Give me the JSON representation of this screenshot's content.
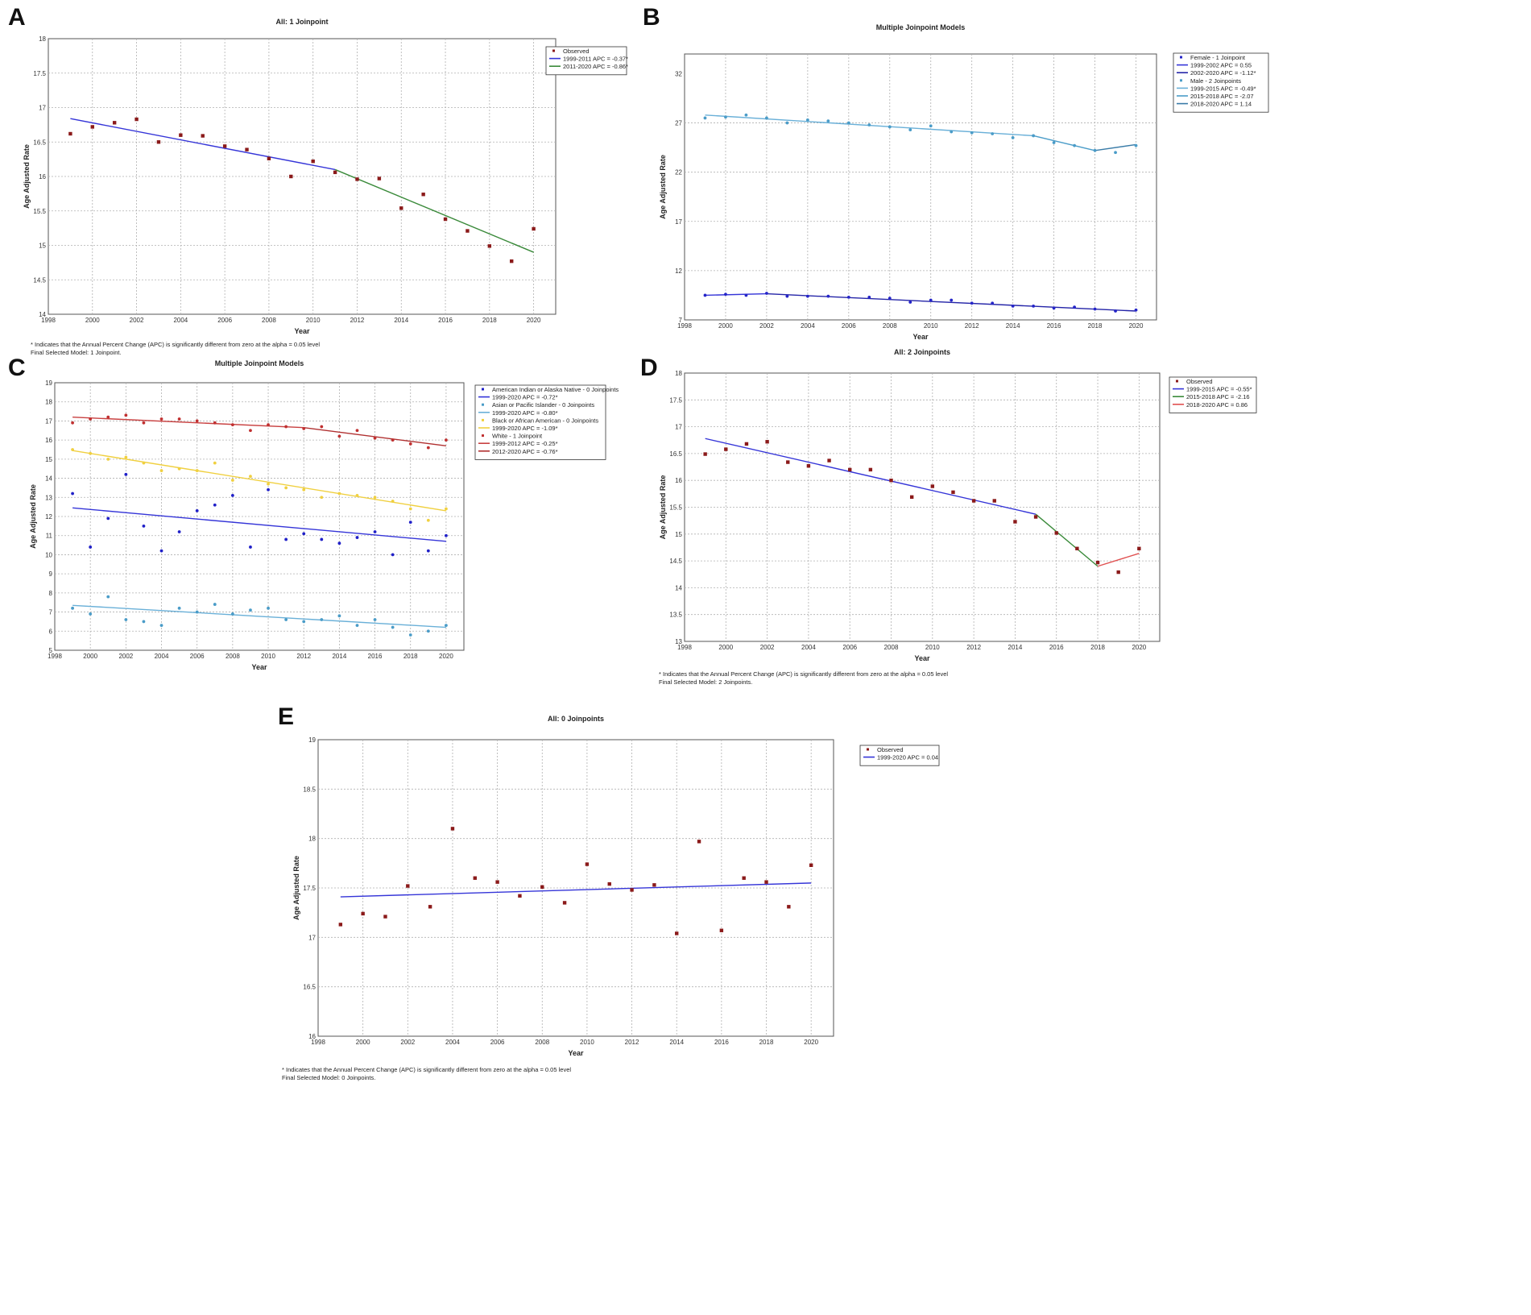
{
  "panels": {
    "A": {
      "label": "A",
      "footnote1": "* Indicates that the Annual Percent Change (APC) is significantly different from zero at the alpha = 0.05 level",
      "footnote2": "Final Selected Model: 1 Joinpoint."
    },
    "B": {
      "label": "B"
    },
    "C": {
      "label": "C"
    },
    "D": {
      "label": "D",
      "footnote1": "* Indicates that the Annual Percent Change (APC) is significantly different from zero at the alpha = 0.05 level",
      "footnote2": "Final Selected Model: 2 Joinpoints."
    },
    "E": {
      "label": "E",
      "footnote1": "* Indicates that the Annual Percent Change (APC) is significantly different from zero at the alpha = 0.05 level",
      "footnote2": "Final Selected Model: 0 Joinpoints."
    }
  },
  "colors": {
    "observed": "#8b1a1a",
    "blue": "#3535d8",
    "green": "#3a8a3a",
    "lightblue": "#4a9cc8",
    "red": "#d04848",
    "yellow": "#f0d040",
    "white_red": "#c84040"
  },
  "chart_data": [
    {
      "id": "A",
      "type": "scatter",
      "title": "All: 1 Joinpoint",
      "xlabel": "Year",
      "ylabel": "Age Adjusted Rate",
      "xlim": [
        1998,
        2021
      ],
      "ylim": [
        14,
        18
      ],
      "xticks": [
        1998,
        2000,
        2002,
        2004,
        2006,
        2008,
        2010,
        2012,
        2014,
        2016,
        2018,
        2020
      ],
      "yticks": [
        "14",
        "14.5",
        "15",
        "15.5",
        "16",
        "16.5",
        "17",
        "17.5",
        "18"
      ],
      "legend": [
        {
          "label": "Observed",
          "kind": "point",
          "color": "#8b1a1a"
        },
        {
          "label": "1999-2011 APC = -0.37*",
          "kind": "line",
          "color": "#3535d8"
        },
        {
          "label": "2011-2020 APC = -0.86*",
          "kind": "line",
          "color": "#3a8a3a"
        }
      ],
      "points": [
        {
          "series": "Observed",
          "color": "#8b1a1a",
          "x": [
            1999,
            2000,
            2001,
            2002,
            2003,
            2004,
            2005,
            2006,
            2007,
            2008,
            2009,
            2010,
            2011,
            2012,
            2013,
            2014,
            2015,
            2016,
            2017,
            2018,
            2019,
            2020
          ],
          "y": [
            16.62,
            16.72,
            16.78,
            16.83,
            16.5,
            16.6,
            16.59,
            16.44,
            16.39,
            16.26,
            16.0,
            16.22,
            16.06,
            15.96,
            15.97,
            15.54,
            15.74,
            15.38,
            15.21,
            14.99,
            14.77,
            15.24
          ]
        }
      ],
      "lines": [
        {
          "label": "1999-2011 APC = -0.37*",
          "color": "#3535d8",
          "x": [
            1999,
            2011
          ],
          "y": [
            16.84,
            16.1
          ]
        },
        {
          "label": "2011-2020 APC = -0.86*",
          "color": "#3a8a3a",
          "x": [
            2011,
            2020
          ],
          "y": [
            16.1,
            14.9
          ]
        }
      ]
    },
    {
      "id": "B",
      "type": "line",
      "title": "Multiple Joinpoint Models",
      "xlabel": "Year",
      "ylabel": "Age Adjusted Rate",
      "xlim": [
        1998,
        2021
      ],
      "ylim": [
        7,
        34
      ],
      "xticks": [
        1998,
        2000,
        2002,
        2004,
        2006,
        2008,
        2010,
        2012,
        2014,
        2016,
        2018,
        2020
      ],
      "yticks": [
        "7",
        "12",
        "17",
        "22",
        "27",
        "32"
      ],
      "legend": [
        {
          "label": "Female - 1 Joinpoint",
          "kind": "point",
          "color": "#2525c8"
        },
        {
          "label": "1999-2002 APC = 0.55",
          "kind": "line",
          "color": "#3535d8"
        },
        {
          "label": "2002-2020 APC = -1.12*",
          "kind": "line",
          "color": "#2525a8"
        },
        {
          "label": "Male - 2 Joinpoints",
          "kind": "point",
          "color": "#4a9cc8"
        },
        {
          "label": "1999-2015 APC = -0.49*",
          "kind": "line",
          "color": "#6ab0d8"
        },
        {
          "label": "2015-2018 APC = -2.07",
          "kind": "line",
          "color": "#4a9cc8"
        },
        {
          "label": "2018-2020 APC = 1.14",
          "kind": "line",
          "color": "#3a7ca8"
        }
      ],
      "points": [
        {
          "series": "Female",
          "color": "#2525c8",
          "x": [
            1999,
            2000,
            2001,
            2002,
            2003,
            2004,
            2005,
            2006,
            2007,
            2008,
            2009,
            2010,
            2011,
            2012,
            2013,
            2014,
            2015,
            2016,
            2017,
            2018,
            2019,
            2020
          ],
          "y": [
            9.5,
            9.6,
            9.5,
            9.7,
            9.4,
            9.4,
            9.4,
            9.3,
            9.3,
            9.2,
            8.8,
            9.0,
            9.0,
            8.7,
            8.7,
            8.4,
            8.4,
            8.2,
            8.3,
            8.1,
            7.9,
            8.0
          ]
        },
        {
          "series": "Male",
          "color": "#4a9cc8",
          "x": [
            1999,
            2000,
            2001,
            2002,
            2003,
            2004,
            2005,
            2006,
            2007,
            2008,
            2009,
            2010,
            2011,
            2012,
            2013,
            2014,
            2015,
            2016,
            2017,
            2018,
            2019,
            2020
          ],
          "y": [
            27.5,
            27.6,
            27.8,
            27.5,
            27.0,
            27.3,
            27.2,
            27.0,
            26.8,
            26.6,
            26.3,
            26.7,
            26.1,
            26.0,
            25.9,
            25.5,
            25.7,
            25.0,
            24.7,
            24.2,
            24.0,
            24.7
          ]
        }
      ],
      "lines": [
        {
          "label": "1999-2002 APC = 0.55",
          "color": "#3535d8",
          "x": [
            1999,
            2002
          ],
          "y": [
            9.5,
            9.65
          ]
        },
        {
          "label": "2002-2020 APC = -1.12*",
          "color": "#2525a8",
          "x": [
            2002,
            2020
          ],
          "y": [
            9.65,
            7.9
          ]
        },
        {
          "label": "1999-2015 APC = -0.49*",
          "color": "#6ab0d8",
          "x": [
            1999,
            2015
          ],
          "y": [
            27.8,
            25.7
          ]
        },
        {
          "label": "2015-2018 APC = -2.07",
          "color": "#4a9cc8",
          "x": [
            2015,
            2018
          ],
          "y": [
            25.7,
            24.2
          ]
        },
        {
          "label": "2018-2020 APC = 1.14",
          "color": "#3a7ca8",
          "x": [
            2018,
            2020
          ],
          "y": [
            24.2,
            24.8
          ]
        }
      ]
    },
    {
      "id": "C",
      "type": "line",
      "title": "Multiple Joinpoint Models",
      "xlabel": "Year",
      "ylabel": "Age Adjusted Rate",
      "xlim": [
        1998,
        2021
      ],
      "ylim": [
        5,
        19
      ],
      "xticks": [
        1998,
        2000,
        2002,
        2004,
        2006,
        2008,
        2010,
        2012,
        2014,
        2016,
        2018,
        2020
      ],
      "yticks": [
        "5",
        "6",
        "7",
        "8",
        "9",
        "10",
        "11",
        "12",
        "13",
        "14",
        "15",
        "16",
        "17",
        "18",
        "19"
      ],
      "legend": [
        {
          "label": "American Indian or Alaska Native - 0 Joinpoints",
          "kind": "point",
          "color": "#2020c8"
        },
        {
          "label": "1999-2020 APC = -0.72*",
          "kind": "line",
          "color": "#3535d8"
        },
        {
          "label": "Asian or Pacific Islander - 0 Joinpoints",
          "kind": "point",
          "color": "#4a9cc8"
        },
        {
          "label": "1999-2020 APC = -0.80*",
          "kind": "line",
          "color": "#6ab0d8"
        },
        {
          "label": "Black or African American - 0 Joinpoints",
          "kind": "point",
          "color": "#f0d040"
        },
        {
          "label": "1999-2020 APC = -1.09*",
          "kind": "line",
          "color": "#f0d040"
        },
        {
          "label": "White - 1 Joinpoint",
          "kind": "point",
          "color": "#c03030"
        },
        {
          "label": "1999-2012 APC = -0.25*",
          "kind": "line",
          "color": "#c84040"
        },
        {
          "label": "2012-2020 APC = -0.76*",
          "kind": "line",
          "color": "#b03030"
        }
      ],
      "points": [
        {
          "series": "AIAN",
          "color": "#2020c8",
          "x": [
            1999,
            2000,
            2001,
            2002,
            2003,
            2004,
            2005,
            2006,
            2007,
            2008,
            2009,
            2010,
            2011,
            2012,
            2013,
            2014,
            2015,
            2016,
            2017,
            2018,
            2019,
            2020
          ],
          "y": [
            13.2,
            10.4,
            11.9,
            14.2,
            11.5,
            10.2,
            11.2,
            12.3,
            12.6,
            13.1,
            10.4,
            13.4,
            10.8,
            11.1,
            10.8,
            10.6,
            10.9,
            11.2,
            10.0,
            11.7,
            10.2,
            11.0
          ]
        },
        {
          "series": "API",
          "color": "#4a9cc8",
          "x": [
            1999,
            2000,
            2001,
            2002,
            2003,
            2004,
            2005,
            2006,
            2007,
            2008,
            2009,
            2010,
            2011,
            2012,
            2013,
            2014,
            2015,
            2016,
            2017,
            2018,
            2019,
            2020
          ],
          "y": [
            7.2,
            6.9,
            7.8,
            6.6,
            6.5,
            6.3,
            7.2,
            7.0,
            7.4,
            6.9,
            7.1,
            7.2,
            6.6,
            6.5,
            6.6,
            6.8,
            6.3,
            6.6,
            6.2,
            5.8,
            6.0,
            6.3
          ]
        },
        {
          "series": "Black",
          "color": "#f0d040",
          "x": [
            1999,
            2000,
            2001,
            2002,
            2003,
            2004,
            2005,
            2006,
            2007,
            2008,
            2009,
            2010,
            2011,
            2012,
            2013,
            2014,
            2015,
            2016,
            2017,
            2018,
            2019,
            2020
          ],
          "y": [
            15.5,
            15.3,
            15.0,
            15.1,
            14.8,
            14.4,
            14.5,
            14.4,
            14.8,
            13.9,
            14.1,
            13.7,
            13.5,
            13.4,
            13.0,
            13.2,
            13.1,
            13.0,
            12.8,
            12.4,
            11.8,
            12.4
          ]
        },
        {
          "series": "White",
          "color": "#c03030",
          "x": [
            1999,
            2000,
            2001,
            2002,
            2003,
            2004,
            2005,
            2006,
            2007,
            2008,
            2009,
            2010,
            2011,
            2012,
            2013,
            2014,
            2015,
            2016,
            2017,
            2018,
            2019,
            2020
          ],
          "y": [
            16.9,
            17.1,
            17.2,
            17.3,
            16.9,
            17.1,
            17.1,
            17.0,
            16.9,
            16.8,
            16.5,
            16.8,
            16.7,
            16.6,
            16.7,
            16.2,
            16.5,
            16.1,
            16.0,
            15.8,
            15.6,
            16.0
          ]
        }
      ],
      "lines": [
        {
          "label": "1999-2020 APC = -0.72*",
          "color": "#3535d8",
          "x": [
            1999,
            2020
          ],
          "y": [
            12.45,
            10.7
          ]
        },
        {
          "label": "1999-2020 APC = -0.80*",
          "color": "#6ab0d8",
          "x": [
            1999,
            2020
          ],
          "y": [
            7.35,
            6.2
          ]
        },
        {
          "label": "1999-2020 APC = -1.09*",
          "color": "#f0d040",
          "x": [
            1999,
            2020
          ],
          "y": [
            15.45,
            12.3
          ]
        },
        {
          "label": "1999-2012 APC = -0.25*",
          "color": "#c84040",
          "x": [
            1999,
            2012
          ],
          "y": [
            17.2,
            16.65
          ]
        },
        {
          "label": "2012-2020 APC = -0.76*",
          "color": "#b03030",
          "x": [
            2012,
            2020
          ],
          "y": [
            16.65,
            15.7
          ]
        }
      ]
    },
    {
      "id": "D",
      "type": "scatter",
      "title": "All: 2 Joinpoints",
      "xlabel": "Year",
      "ylabel": "Age Adjusted Rate",
      "xlim": [
        1998,
        2021
      ],
      "ylim": [
        13,
        18
      ],
      "xticks": [
        1998,
        2000,
        2002,
        2004,
        2006,
        2008,
        2010,
        2012,
        2014,
        2016,
        2018,
        2020
      ],
      "yticks": [
        "13",
        "13.5",
        "14",
        "14.5",
        "15",
        "15.5",
        "16",
        "16.5",
        "17",
        "17.5",
        "18"
      ],
      "legend": [
        {
          "label": "Observed",
          "kind": "point",
          "color": "#8b1a1a"
        },
        {
          "label": "1999-2015 APC = -0.55*",
          "kind": "line",
          "color": "#3535d8"
        },
        {
          "label": "2015-2018 APC = -2.16",
          "kind": "line",
          "color": "#3a8a3a"
        },
        {
          "label": "2018-2020 APC = 0.86",
          "kind": "line",
          "color": "#e05050"
        }
      ],
      "points": [
        {
          "series": "Observed",
          "color": "#8b1a1a",
          "x": [
            1999,
            2000,
            2001,
            2002,
            2003,
            2004,
            2005,
            2006,
            2007,
            2008,
            2009,
            2010,
            2011,
            2012,
            2013,
            2014,
            2015,
            2016,
            2017,
            2018,
            2019,
            2020
          ],
          "y": [
            16.49,
            16.58,
            16.68,
            16.72,
            16.34,
            16.27,
            16.37,
            16.2,
            16.2,
            16.0,
            15.69,
            15.89,
            15.78,
            15.62,
            15.62,
            15.23,
            15.32,
            15.02,
            14.73,
            14.47,
            14.29,
            14.73
          ]
        }
      ],
      "lines": [
        {
          "label": "1999-2015 APC = -0.55*",
          "color": "#3535d8",
          "x": [
            1999,
            2015
          ],
          "y": [
            16.78,
            15.37
          ]
        },
        {
          "label": "2015-2018 APC = -2.16",
          "color": "#3a8a3a",
          "x": [
            2015,
            2018
          ],
          "y": [
            15.37,
            14.4
          ]
        },
        {
          "label": "2018-2020 APC = 0.86",
          "color": "#e05050",
          "x": [
            2018,
            2020
          ],
          "y": [
            14.4,
            14.64
          ]
        }
      ]
    },
    {
      "id": "E",
      "type": "scatter",
      "title": "All: 0 Joinpoints",
      "xlabel": "Year",
      "ylabel": "Age Adjusted Rate",
      "xlim": [
        1998,
        2021
      ],
      "ylim": [
        16,
        19
      ],
      "xticks": [
        1998,
        2000,
        2002,
        2004,
        2006,
        2008,
        2010,
        2012,
        2014,
        2016,
        2018,
        2020
      ],
      "yticks": [
        "16",
        "16.5",
        "17",
        "17.5",
        "18",
        "18.5",
        "19"
      ],
      "legend": [
        {
          "label": "Observed",
          "kind": "point",
          "color": "#8b1a1a"
        },
        {
          "label": "1999-2020 APC = 0.04",
          "kind": "line",
          "color": "#3535d8"
        }
      ],
      "points": [
        {
          "series": "Observed",
          "color": "#8b1a1a",
          "x": [
            1999,
            2000,
            2001,
            2002,
            2003,
            2004,
            2005,
            2006,
            2007,
            2008,
            2009,
            2010,
            2011,
            2012,
            2013,
            2014,
            2015,
            2016,
            2017,
            2018,
            2019,
            2020
          ],
          "y": [
            17.13,
            17.24,
            17.21,
            17.52,
            17.31,
            18.1,
            17.6,
            17.56,
            17.42,
            17.51,
            17.35,
            17.74,
            17.54,
            17.48,
            17.53,
            17.04,
            17.97,
            17.07,
            17.6,
            17.56,
            17.31,
            17.73
          ]
        }
      ],
      "lines": [
        {
          "label": "1999-2020 APC = 0.04",
          "color": "#3535d8",
          "x": [
            1999,
            2020
          ],
          "y": [
            17.41,
            17.55
          ]
        }
      ]
    }
  ]
}
